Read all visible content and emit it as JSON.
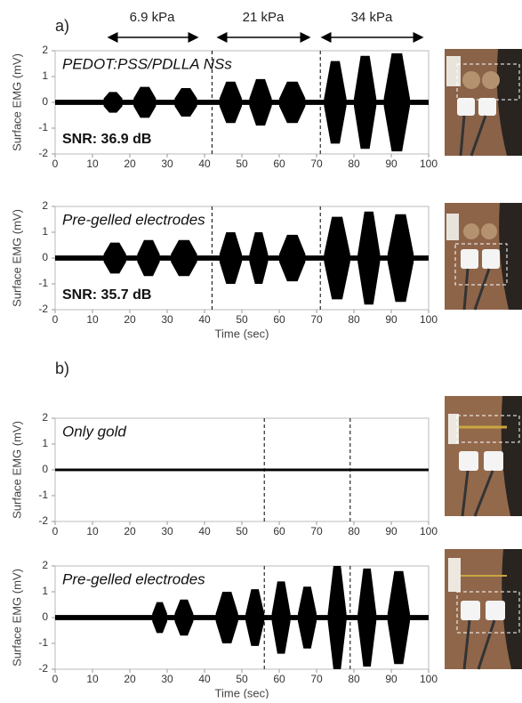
{
  "panels": [
    "a)",
    "b)"
  ],
  "pressures": [
    "6.9 kPa",
    "21 kPa",
    "34 kPa"
  ],
  "chart_data": [
    {
      "type": "emg",
      "label": "PEDOT:PSS/PDLLA NSs",
      "annotation": "SNR: 36.9 dB",
      "ylabel": "Surface EMG (mV)",
      "xlim": [
        0,
        100
      ],
      "ylim": [
        -2,
        2
      ],
      "xticks": [
        0,
        10,
        20,
        30,
        40,
        50,
        60,
        70,
        80,
        90,
        100
      ],
      "yticks": [
        2,
        1,
        0,
        -1,
        -2
      ],
      "color": "#000000",
      "baseline": 0.1,
      "markers": [
        42,
        71
      ],
      "bursts": {
        "start": [
          13,
          21,
          32,
          44,
          52,
          60,
          72,
          80,
          88
        ],
        "end": [
          18,
          27,
          38,
          50,
          58,
          67,
          78,
          86,
          95
        ],
        "amplitude": [
          0.4,
          0.6,
          0.55,
          0.8,
          0.9,
          0.8,
          1.6,
          1.8,
          1.9
        ]
      }
    },
    {
      "type": "emg",
      "label": "Pre-gelled electrodes",
      "annotation": "SNR: 35.7 dB",
      "ylabel": "Surface EMG (mV)",
      "xlabel": "Time (sec)",
      "xlim": [
        0,
        100
      ],
      "ylim": [
        -2,
        2
      ],
      "xticks": [
        0,
        10,
        20,
        30,
        40,
        50,
        60,
        70,
        80,
        90,
        100
      ],
      "yticks": [
        2,
        1,
        0,
        -1,
        -2
      ],
      "color": "#000000",
      "baseline": 0.1,
      "markers": [
        42,
        71
      ],
      "bursts": {
        "start": [
          13,
          22,
          31,
          44,
          52,
          60,
          72,
          81,
          89
        ],
        "end": [
          19,
          28,
          38,
          50,
          57,
          67,
          79,
          87,
          96
        ],
        "amplitude": [
          0.6,
          0.7,
          0.7,
          1.0,
          1.0,
          0.9,
          1.6,
          1.8,
          1.7
        ]
      }
    },
    {
      "type": "emg",
      "label": "Only gold",
      "ylabel": "Surface EMG (mV)",
      "xlim": [
        0,
        100
      ],
      "ylim": [
        -2,
        2
      ],
      "xticks": [
        0,
        10,
        20,
        30,
        40,
        50,
        60,
        70,
        80,
        90,
        100
      ],
      "yticks": [
        2,
        1,
        0,
        -1,
        -2
      ],
      "color": "#000000",
      "baseline": 0.05,
      "markers": [
        56,
        79
      ],
      "bursts": {
        "start": [],
        "end": [],
        "amplitude": []
      }
    },
    {
      "type": "emg",
      "label": "Pre-gelled electrodes",
      "ylabel": "Surface EMG (mV)",
      "xlabel": "Time (sec)",
      "xlim": [
        0,
        100
      ],
      "ylim": [
        -2,
        2
      ],
      "xticks": [
        0,
        10,
        20,
        30,
        40,
        50,
        60,
        70,
        80,
        90,
        100
      ],
      "yticks": [
        2,
        1,
        0,
        -1,
        -2
      ],
      "color": "#000000",
      "baseline": 0.1,
      "markers": [
        56,
        79
      ],
      "bursts": {
        "start": [
          26,
          32,
          43,
          51,
          58,
          65,
          73,
          81,
          89
        ],
        "end": [
          30,
          37,
          49,
          56,
          63,
          70,
          78,
          86,
          95
        ],
        "amplitude": [
          0.6,
          0.7,
          1.0,
          1.1,
          1.4,
          1.2,
          2.0,
          1.9,
          1.8
        ]
      }
    }
  ]
}
